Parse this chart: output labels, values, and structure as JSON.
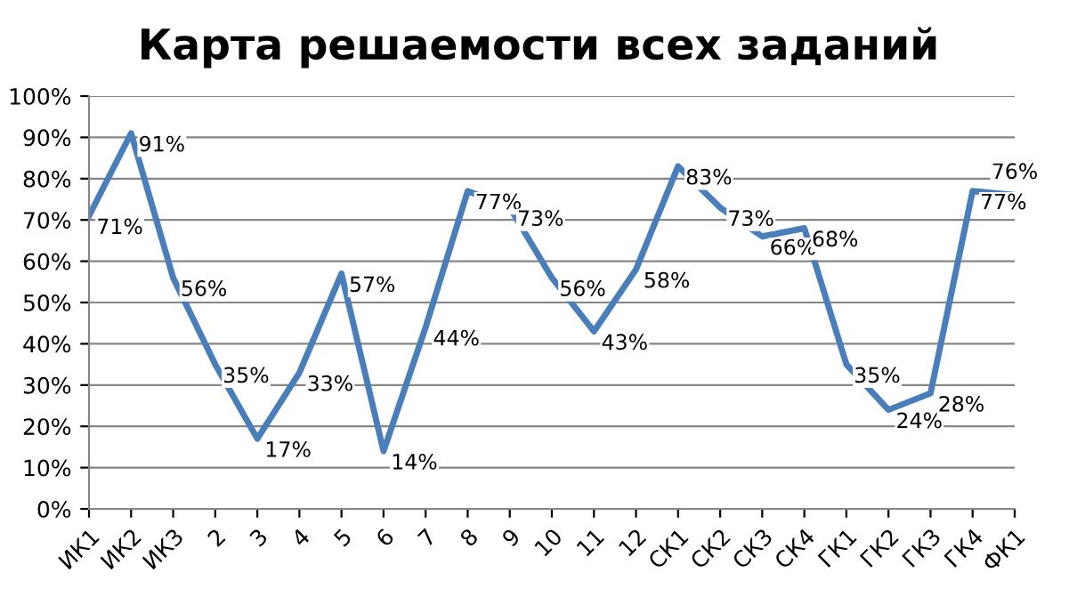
{
  "chart_data": {
    "type": "line",
    "title": "Карта решаемости всех заданий",
    "categories": [
      "ИК1",
      "ИК2",
      "ИК3",
      "2",
      "3",
      "4",
      "5",
      "6",
      "7",
      "8",
      "9",
      "10",
      "11",
      "12",
      "СК1",
      "СК2",
      "СК3",
      "СК4",
      "ГК1",
      "ГК2",
      "ГК3",
      "ГК4",
      "ФК1"
    ],
    "series": [
      {
        "color": "#4a7ebb",
        "values": [
          71,
          91,
          56,
          35,
          17,
          33,
          57,
          14,
          44,
          77,
          73,
          56,
          43,
          58,
          83,
          73,
          66,
          68,
          35,
          24,
          28,
          77,
          76
        ],
        "value_labels": [
          "71%",
          "91%",
          "56%",
          "35%",
          "17%",
          "33%",
          "57%",
          "14%",
          "44%",
          "77%",
          "73%",
          "56%",
          "43%",
          "58%",
          "83%",
          "73%",
          "66%",
          "68%",
          "35%",
          "24%",
          "28%",
          "77%",
          "76%"
        ]
      }
    ],
    "ylim": [
      0,
      100
    ],
    "yticks": [
      {
        "value": 0,
        "label": "0%"
      },
      {
        "value": 10,
        "label": "10%"
      },
      {
        "value": 20,
        "label": "20%"
      },
      {
        "value": 30,
        "label": "30%"
      },
      {
        "value": 40,
        "label": "40%"
      },
      {
        "value": 50,
        "label": "50%"
      },
      {
        "value": 60,
        "label": "60%"
      },
      {
        "value": 70,
        "label": "70%"
      },
      {
        "value": 80,
        "label": "80%"
      },
      {
        "value": 90,
        "label": "90%"
      },
      {
        "value": 100,
        "label": "100%"
      }
    ],
    "grid": "y",
    "legend": false,
    "marker": "none",
    "line_style": "solid"
  }
}
